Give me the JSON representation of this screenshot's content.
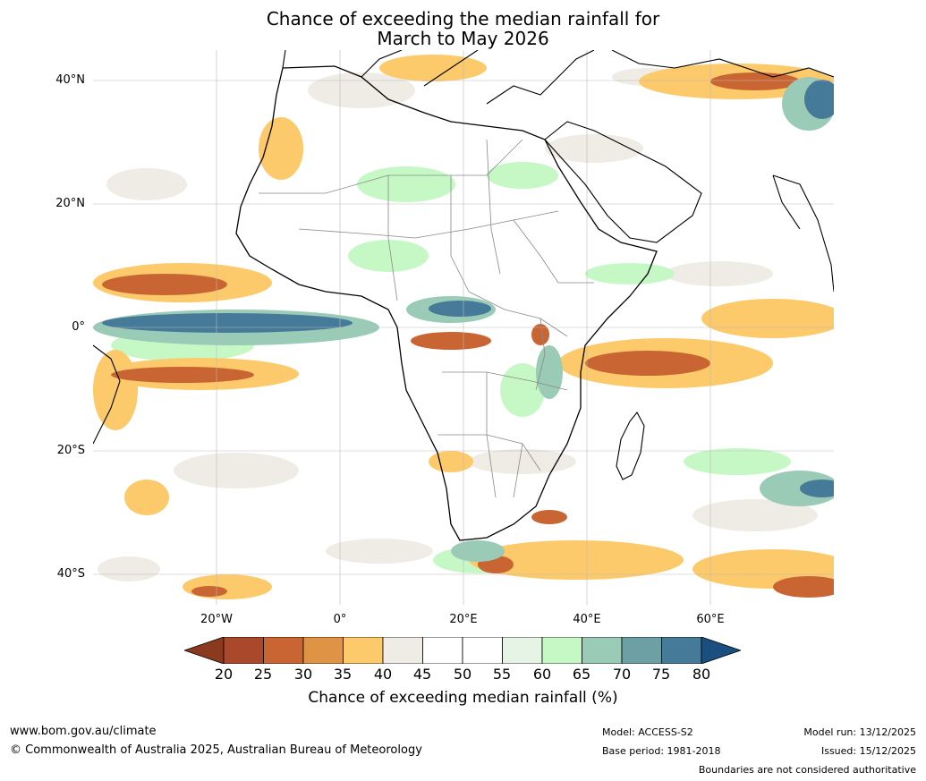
{
  "title_line1": "Chance of exceeding the median rainfall for",
  "title_line2": "March to May 2026",
  "lat_labels": [
    "40°N",
    "20°N",
    "0°",
    "20°S",
    "40°S"
  ],
  "lon_labels": [
    "20°W",
    "0°",
    "20°E",
    "40°E",
    "60°E"
  ],
  "colorbar": {
    "ticks": [
      "20",
      "25",
      "30",
      "35",
      "40",
      "45",
      "50",
      "55",
      "60",
      "65",
      "70",
      "75",
      "80"
    ],
    "colors": [
      "#8b3a1e",
      "#a9482a",
      "#c96532",
      "#df9445",
      "#fcca6a",
      "#efebe5",
      "#ffffff",
      "#ffffff",
      "#e6f4e6",
      "#c6f8c6",
      "#99cbb6",
      "#6da0a4",
      "#467a99",
      "#1b4f80"
    ],
    "label": "Chance of exceeding median rainfall (%)"
  },
  "footer": {
    "website": "www.bom.gov.au/climate",
    "copyright": "© Commonwealth of Australia 2025, Australian Bureau of Meteorology",
    "model": "Model: ACCESS-S2",
    "base_period": "Base period: 1981-2018",
    "model_run": "Model run: 13/12/2025",
    "issued": "Issued: 15/12/2025",
    "disclaimer": "Boundaries are not considered authoritative"
  }
}
